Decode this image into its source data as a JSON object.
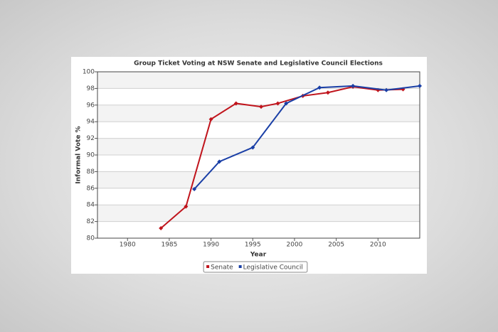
{
  "chart_data": {
    "type": "line",
    "title": "Group Ticket Voting at NSW Senate and Legislative Council Elections",
    "x_label": "Year",
    "y_label": "Informal Vote %",
    "series": [
      {
        "name": "Senate",
        "color": "#c0141c",
        "x": [
          1984,
          1987,
          1990,
          1993,
          1996,
          1998,
          2001,
          2004,
          2007,
          2010,
          2013
        ],
        "values": [
          81.2,
          83.8,
          94.3,
          96.2,
          95.8,
          96.2,
          97.1,
          97.5,
          98.2,
          97.8,
          97.9
        ]
      },
      {
        "name": "Legislative Council",
        "color": "#1a3fa6",
        "x": [
          1988,
          1991,
          1995,
          1999,
          2003,
          2007,
          2011,
          2015
        ],
        "values": [
          85.9,
          89.2,
          90.9,
          96.2,
          98.1,
          98.3,
          97.8,
          98.3
        ]
      }
    ],
    "xlim": [
      1976.4,
      2015
    ],
    "xticks": [
      1980,
      1985,
      1990,
      1995,
      2000,
      2005,
      2010
    ],
    "ylim": [
      80,
      100
    ],
    "yticks": [
      80,
      82,
      84,
      86,
      88,
      90,
      92,
      94,
      96,
      98,
      100
    ],
    "grid": true,
    "legend": "bottom"
  }
}
